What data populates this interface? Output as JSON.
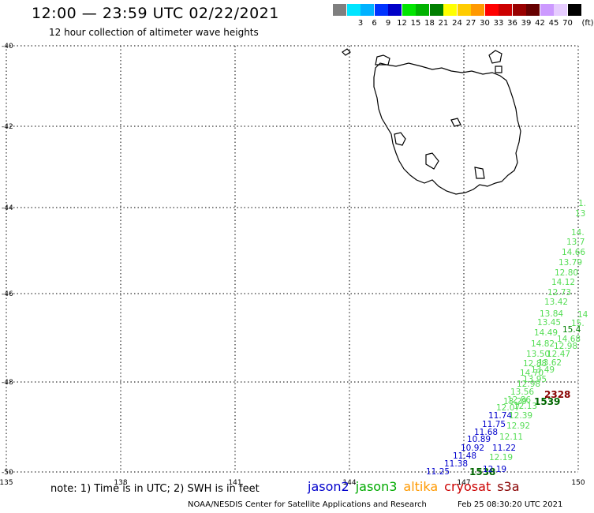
{
  "header": {
    "title": "12:00 — 23:59 UTC 02/22/2021",
    "subtitle": "12 hour collection of altimeter wave heights"
  },
  "color_scale": {
    "unit_label": "(ft)",
    "bins": [
      {
        "label": "",
        "color": "#7f7f7f"
      },
      {
        "label": "3",
        "color": "#00e5ff"
      },
      {
        "label": "6",
        "color": "#00b2ff"
      },
      {
        "label": "9",
        "color": "#0033ff"
      },
      {
        "label": "12",
        "color": "#0000c8"
      },
      {
        "label": "15",
        "color": "#00e500"
      },
      {
        "label": "18",
        "color": "#00b200"
      },
      {
        "label": "21",
        "color": "#007f00"
      },
      {
        "label": "24",
        "color": "#ffff00"
      },
      {
        "label": "27",
        "color": "#ffcc00"
      },
      {
        "label": "30",
        "color": "#ff9900"
      },
      {
        "label": "33",
        "color": "#ff0000"
      },
      {
        "label": "36",
        "color": "#cc0000"
      },
      {
        "label": "39",
        "color": "#990000"
      },
      {
        "label": "42",
        "color": "#660000"
      },
      {
        "label": "45",
        "color": "#cc99ff"
      },
      {
        "label": "70",
        "color": "#e6ccff"
      },
      {
        "label": "",
        "color": "#000000"
      }
    ]
  },
  "map": {
    "region": "Tasmania",
    "grid": {
      "lat_labels": [
        "-40",
        "-42",
        "-44",
        "-46",
        "-48",
        "-50"
      ],
      "lon_labels": [
        "135",
        "138",
        "141",
        "144",
        "147",
        "150"
      ]
    },
    "observations": [
      {
        "value": "1.",
        "sat": "jason3",
        "color": "#55dd55"
      },
      {
        "value": "13",
        "sat": "jason3",
        "color": "#55dd55"
      },
      {
        "value": "14.",
        "sat": "jason3",
        "color": "#55dd55"
      },
      {
        "value": "13.7",
        "sat": "jason3",
        "color": "#55dd55"
      },
      {
        "value": "14.66",
        "sat": "jason3",
        "color": "#55dd55"
      },
      {
        "value": "13.79",
        "sat": "jason3",
        "color": "#55dd55"
      },
      {
        "value": "12.80",
        "sat": "jason3",
        "color": "#55dd55"
      },
      {
        "value": "14.12",
        "sat": "jason3",
        "color": "#55dd55"
      },
      {
        "value": "12.73",
        "sat": "jason3",
        "color": "#55dd55"
      },
      {
        "value": "13.42",
        "sat": "jason3",
        "color": "#55dd55"
      },
      {
        "value": "13.84",
        "sat": "jason3",
        "color": "#55dd55"
      },
      {
        "value": "14",
        "sat": "jason3",
        "color": "#55dd55"
      },
      {
        "value": "13.45",
        "sat": "jason3",
        "color": "#55dd55"
      },
      {
        "value": "15.",
        "sat": "jason3",
        "color": "#55dd55"
      },
      {
        "value": "15.4",
        "sat": "jason3",
        "color": "#007f00"
      },
      {
        "value": "14.49",
        "sat": "jason3",
        "color": "#55dd55"
      },
      {
        "value": "14.68",
        "sat": "jason3",
        "color": "#55dd55"
      },
      {
        "value": "14.82",
        "sat": "jason3",
        "color": "#55dd55"
      },
      {
        "value": "12.98",
        "sat": "jason3",
        "color": "#55dd55"
      },
      {
        "value": "13.50",
        "sat": "jason3",
        "color": "#55dd55"
      },
      {
        "value": "12.47",
        "sat": "jason3",
        "color": "#55dd55"
      },
      {
        "value": "12.88",
        "sat": "jason3",
        "color": "#55dd55"
      },
      {
        "value": "13.62",
        "sat": "jason3",
        "color": "#55dd55"
      },
      {
        "value": "13.49",
        "sat": "jason3",
        "color": "#55dd55"
      },
      {
        "value": "14.70",
        "sat": "jason3",
        "color": "#55dd55"
      },
      {
        "value": "13.95",
        "sat": "jason3",
        "color": "#55dd55"
      },
      {
        "value": "12.98",
        "sat": "jason3",
        "color": "#55dd55"
      },
      {
        "value": "13.56",
        "sat": "jason3",
        "color": "#55dd55"
      },
      {
        "value": "2328",
        "sat": "cryosat",
        "color": "#880000"
      },
      {
        "value": "12.86",
        "sat": "jason3",
        "color": "#55dd55"
      },
      {
        "value": "13.29",
        "sat": "jason3",
        "color": "#55dd55"
      },
      {
        "value": "1539",
        "sat": "jason3",
        "color": "#006600"
      },
      {
        "value": "12.07",
        "sat": "jason3",
        "color": "#55dd55"
      },
      {
        "value": "12.13",
        "sat": "jason3",
        "color": "#55dd55"
      },
      {
        "value": "11.74",
        "sat": "jason2",
        "color": "#0000cc"
      },
      {
        "value": "12.39",
        "sat": "jason3",
        "color": "#55dd55"
      },
      {
        "value": "11.75",
        "sat": "jason2",
        "color": "#0000cc"
      },
      {
        "value": "12.92",
        "sat": "jason3",
        "color": "#55dd55"
      },
      {
        "value": "11.68",
        "sat": "jason2",
        "color": "#0000cc"
      },
      {
        "value": "12.11",
        "sat": "jason3",
        "color": "#55dd55"
      },
      {
        "value": "10.89",
        "sat": "jason2",
        "color": "#0000cc"
      },
      {
        "value": "10.92",
        "sat": "jason2",
        "color": "#0000cc"
      },
      {
        "value": "11.22",
        "sat": "jason2",
        "color": "#0000cc"
      },
      {
        "value": "11.48",
        "sat": "jason2",
        "color": "#0000cc"
      },
      {
        "value": "12.19",
        "sat": "jason3",
        "color": "#55dd55"
      },
      {
        "value": "11.38",
        "sat": "jason2",
        "color": "#0000cc"
      },
      {
        "value": "11.25",
        "sat": "jason2",
        "color": "#0000cc"
      },
      {
        "value": "1538",
        "sat": "jason3",
        "color": "#006600"
      },
      {
        "value": "12.19",
        "sat": "jason2",
        "color": "#0000cc"
      }
    ]
  },
  "footer": {
    "note": "note: 1) Time is in UTC; 2) SWH is in feet",
    "legend": [
      {
        "label": "jason2",
        "color": "#0000cc"
      },
      {
        "label": "jason3",
        "color": "#00aa00"
      },
      {
        "label": "altika",
        "color": "#ff9900"
      },
      {
        "label": "cryosat",
        "color": "#cc0000"
      },
      {
        "label": "s3a",
        "color": "#880000"
      }
    ],
    "credit": "NOAA/NESDIS Center for Satellite Applications and Research",
    "timestamp": "Feb 25 08:30:20 UTC 2021"
  }
}
